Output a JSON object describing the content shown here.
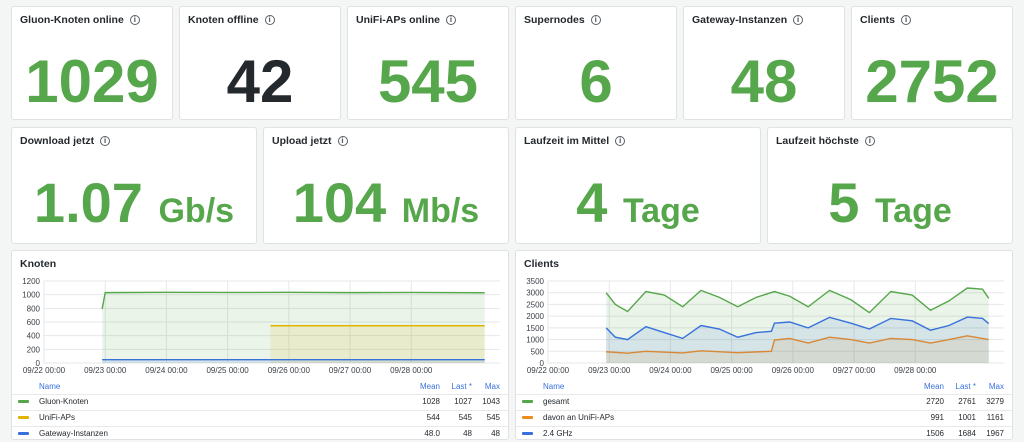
{
  "stats_row1": [
    {
      "title": "Gluon-Knoten online",
      "value": "1029",
      "color": "#56a64b"
    },
    {
      "title": "Knoten offline",
      "value": "42",
      "color": "#24292e"
    },
    {
      "title": "UniFi-APs online",
      "value": "545",
      "color": "#56a64b"
    },
    {
      "title": "Supernodes",
      "value": "6",
      "color": "#56a64b"
    },
    {
      "title": "Gateway-Instanzen",
      "value": "48",
      "color": "#56a64b"
    },
    {
      "title": "Clients",
      "value": "2752",
      "color": "#56a64b"
    }
  ],
  "stats_row2": [
    {
      "title": "Download jetzt",
      "value": "1.07",
      "unit": "Gb/s"
    },
    {
      "title": "Upload jetzt",
      "value": "104",
      "unit": "Mb/s"
    },
    {
      "title": "Laufzeit im Mittel",
      "value": "4",
      "unit": "Tage"
    },
    {
      "title": "Laufzeit höchste",
      "value": "5",
      "unit": "Tage"
    }
  ],
  "info_icon": "info-circle-icon",
  "legend_headers": {
    "name": "Name",
    "mean": "Mean",
    "last": "Last *",
    "max": "Max"
  },
  "chart_data": [
    {
      "type": "area",
      "title": "Knoten",
      "x_ticks": [
        "09/22 00:00",
        "09/23 00:00",
        "09/24 00:00",
        "09/25 00:00",
        "09/26 00:00",
        "09/27 00:00",
        "09/28 00:00"
      ],
      "y_ticks": [
        "0",
        "200",
        "400",
        "600",
        "800",
        "1000",
        "1200"
      ],
      "ylim": [
        0,
        1200
      ],
      "x_range_days": [
        0,
        7.45
      ],
      "series": [
        {
          "name": "Gluon-Knoten",
          "color": "#56a64b",
          "mean": "1028",
          "last": "1027",
          "max": "1043",
          "points": [
            [
              0.95,
              790
            ],
            [
              1.0,
              1030
            ],
            [
              2.0,
              1035
            ],
            [
              3.0,
              1032
            ],
            [
              4.0,
              1034
            ],
            [
              5.0,
              1030
            ],
            [
              6.0,
              1033
            ],
            [
              7.2,
              1028
            ]
          ]
        },
        {
          "name": "UniFi-APs",
          "color": "#e0b400",
          "mean": "544",
          "last": "545",
          "max": "545",
          "points": [
            [
              3.7,
              545
            ],
            [
              7.2,
              545
            ]
          ]
        },
        {
          "name": "Gateway-Instanzen",
          "color": "#3871dc",
          "mean": "48.0",
          "last": "48",
          "max": "48",
          "points": [
            [
              0.95,
              48
            ],
            [
              7.2,
              48
            ]
          ]
        }
      ]
    },
    {
      "type": "area",
      "title": "Clients",
      "x_ticks": [
        "09/22 00:00",
        "09/23 00:00",
        "09/24 00:00",
        "09/25 00:00",
        "09/26 00:00",
        "09/27 00:00",
        "09/28 00:00"
      ],
      "y_ticks": [
        "0",
        "500",
        "1000",
        "1500",
        "2000",
        "2500",
        "3000",
        "3500"
      ],
      "ylim": [
        0,
        3500
      ],
      "x_range_days": [
        0,
        7.45
      ],
      "series": [
        {
          "name": "gesamt",
          "color": "#56a64b",
          "mean": "2720",
          "last": "2761",
          "max": "3279",
          "points": [
            [
              0.95,
              3000
            ],
            [
              1.1,
              2500
            ],
            [
              1.3,
              2200
            ],
            [
              1.6,
              3050
            ],
            [
              1.9,
              2900
            ],
            [
              2.2,
              2400
            ],
            [
              2.5,
              3100
            ],
            [
              2.8,
              2800
            ],
            [
              3.1,
              2400
            ],
            [
              3.4,
              2800
            ],
            [
              3.7,
              3050
            ],
            [
              3.95,
              2850
            ],
            [
              4.25,
              2400
            ],
            [
              4.6,
              3100
            ],
            [
              4.95,
              2700
            ],
            [
              5.25,
              2150
            ],
            [
              5.6,
              3050
            ],
            [
              5.95,
              2900
            ],
            [
              6.25,
              2250
            ],
            [
              6.55,
              2650
            ],
            [
              6.85,
              3200
            ],
            [
              7.1,
              3150
            ],
            [
              7.2,
              2761
            ]
          ]
        },
        {
          "name": "davon an UniFi-APs",
          "color": "#ee8b20",
          "mean": "991",
          "last": "1001",
          "max": "1161",
          "points": [
            [
              0.95,
              480
            ],
            [
              1.3,
              420
            ],
            [
              1.6,
              500
            ],
            [
              2.2,
              430
            ],
            [
              2.5,
              520
            ],
            [
              3.1,
              440
            ],
            [
              3.65,
              500
            ],
            [
              3.7,
              980
            ],
            [
              3.95,
              1050
            ],
            [
              4.25,
              850
            ],
            [
              4.6,
              1100
            ],
            [
              4.95,
              1000
            ],
            [
              5.25,
              850
            ],
            [
              5.6,
              1050
            ],
            [
              5.95,
              1000
            ],
            [
              6.25,
              850
            ],
            [
              6.55,
              1000
            ],
            [
              6.85,
              1160
            ],
            [
              7.2,
              1001
            ]
          ]
        },
        {
          "name": "2.4 GHz",
          "color": "#3871dc",
          "mean": "1506",
          "last": "1684",
          "max": "1967",
          "points": [
            [
              0.95,
              1500
            ],
            [
              1.1,
              1100
            ],
            [
              1.3,
              1000
            ],
            [
              1.6,
              1550
            ],
            [
              1.9,
              1300
            ],
            [
              2.2,
              1050
            ],
            [
              2.5,
              1600
            ],
            [
              2.8,
              1450
            ],
            [
              3.1,
              1100
            ],
            [
              3.4,
              1300
            ],
            [
              3.65,
              1350
            ],
            [
              3.7,
              1700
            ],
            [
              3.95,
              1750
            ],
            [
              4.25,
              1500
            ],
            [
              4.6,
              1950
            ],
            [
              4.95,
              1700
            ],
            [
              5.25,
              1450
            ],
            [
              5.6,
              1900
            ],
            [
              5.95,
              1800
            ],
            [
              6.25,
              1400
            ],
            [
              6.55,
              1600
            ],
            [
              6.85,
              1960
            ],
            [
              7.1,
              1900
            ],
            [
              7.2,
              1684
            ]
          ]
        }
      ]
    }
  ]
}
